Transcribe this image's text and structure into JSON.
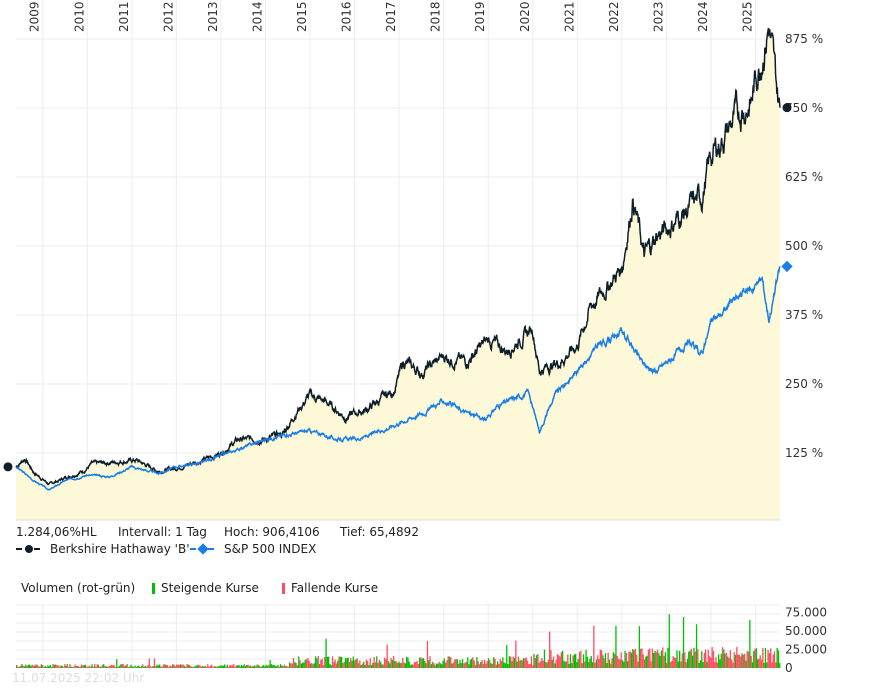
{
  "info": {
    "hl": "1.284,06%HL",
    "interval": "Intervall: 1 Tag",
    "high": "Hoch: 906,4106",
    "low": "Tief: 65,4892"
  },
  "legend": {
    "brk": "Berkshire Hathaway 'B'",
    "spx": "S&P 500 INDEX"
  },
  "volume_legend": {
    "title": "Volumen (rot-grün)",
    "up": "Steigende Kurse",
    "down": "Fallende Kurse"
  },
  "timestamp": "11.07.2025 22:02 Uhr",
  "colors": {
    "brk": "#0f1f2a",
    "spx": "#1a7ee6",
    "fill": "#fdf9d8",
    "up": "#00c000",
    "down": "#ff4d5e"
  },
  "chart_data": [
    {
      "type": "line",
      "title": "",
      "xlabel": "",
      "ylabel": "%",
      "x_ticks": [
        "2009",
        "2010",
        "2011",
        "2012",
        "2013",
        "2014",
        "2015",
        "2016",
        "2017",
        "2018",
        "2019",
        "2020",
        "2021",
        "2022",
        "2023",
        "2024",
        "2025"
      ],
      "y_ticks": [
        "125 %",
        "250 %",
        "375 %",
        "500 %",
        "625 %",
        "750 %",
        "875 %"
      ],
      "y_tick_values": [
        125,
        250,
        375,
        500,
        625,
        750,
        875
      ],
      "xlim": [
        2008.4,
        2025.55
      ],
      "ylim": [
        0,
        945
      ],
      "series": [
        {
          "name": "Berkshire Hathaway 'B'",
          "points": [
            [
              2008.4,
              100
            ],
            [
              2008.6,
              115
            ],
            [
              2008.8,
              90
            ],
            [
              2009.15,
              68
            ],
            [
              2009.5,
              80
            ],
            [
              2009.9,
              92
            ],
            [
              2010.1,
              105
            ],
            [
              2010.5,
              108
            ],
            [
              2011.1,
              112
            ],
            [
              2011.6,
              92
            ],
            [
              2012.0,
              98
            ],
            [
              2012.6,
              112
            ],
            [
              2013.0,
              125
            ],
            [
              2013.4,
              150
            ],
            [
              2014.0,
              150
            ],
            [
              2014.4,
              160
            ],
            [
              2014.7,
              200
            ],
            [
              2015.0,
              230
            ],
            [
              2015.4,
              215
            ],
            [
              2015.8,
              190
            ],
            [
              2016.3,
              205
            ],
            [
              2016.9,
              240
            ],
            [
              2017.1,
              290
            ],
            [
              2017.5,
              270
            ],
            [
              2018.0,
              300
            ],
            [
              2018.5,
              290
            ],
            [
              2019.0,
              330
            ],
            [
              2019.4,
              310
            ],
            [
              2020.0,
              350
            ],
            [
              2020.15,
              275
            ],
            [
              2020.6,
              290
            ],
            [
              2021.0,
              320
            ],
            [
              2021.3,
              390
            ],
            [
              2021.6,
              420
            ],
            [
              2022.0,
              460
            ],
            [
              2022.25,
              590
            ],
            [
              2022.5,
              480
            ],
            [
              2022.8,
              520
            ],
            [
              2023.0,
              530
            ],
            [
              2023.4,
              560
            ],
            [
              2023.8,
              590
            ],
            [
              2024.0,
              660
            ],
            [
              2024.3,
              700
            ],
            [
              2024.6,
              740
            ],
            [
              2024.9,
              760
            ],
            [
              2025.0,
              800
            ],
            [
              2025.3,
              900
            ],
            [
              2025.45,
              800
            ],
            [
              2025.55,
              745
            ]
          ]
        },
        {
          "name": "S&P 500 INDEX",
          "points": [
            [
              2008.4,
              100
            ],
            [
              2008.8,
              75
            ],
            [
              2009.15,
              58
            ],
            [
              2009.5,
              75
            ],
            [
              2010.0,
              85
            ],
            [
              2010.5,
              82
            ],
            [
              2011.0,
              100
            ],
            [
              2011.6,
              88
            ],
            [
              2012.0,
              100
            ],
            [
              2012.6,
              108
            ],
            [
              2013.0,
              120
            ],
            [
              2013.6,
              138
            ],
            [
              2014.0,
              150
            ],
            [
              2014.6,
              160
            ],
            [
              2015.0,
              165
            ],
            [
              2015.6,
              150
            ],
            [
              2016.1,
              150
            ],
            [
              2016.6,
              165
            ],
            [
              2017.0,
              180
            ],
            [
              2017.6,
              200
            ],
            [
              2018.0,
              220
            ],
            [
              2018.3,
              205
            ],
            [
              2018.95,
              185
            ],
            [
              2019.2,
              210
            ],
            [
              2019.9,
              235
            ],
            [
              2020.15,
              165
            ],
            [
              2020.5,
              230
            ],
            [
              2021.0,
              275
            ],
            [
              2021.5,
              320
            ],
            [
              2022.0,
              345
            ],
            [
              2022.45,
              290
            ],
            [
              2022.75,
              270
            ],
            [
              2023.0,
              290
            ],
            [
              2023.5,
              320
            ],
            [
              2023.8,
              305
            ],
            [
              2024.0,
              360
            ],
            [
              2024.5,
              400
            ],
            [
              2025.0,
              430
            ],
            [
              2025.15,
              440
            ],
            [
              2025.3,
              370
            ],
            [
              2025.55,
              460
            ]
          ]
        }
      ]
    },
    {
      "type": "bar",
      "title": "Volumen (rot-grün)",
      "y_ticks": [
        "0",
        "25.000",
        "50.000",
        "75.000"
      ],
      "y_tick_values": [
        0,
        25000,
        50000,
        75000
      ],
      "ylim": [
        0,
        85000
      ]
    }
  ]
}
